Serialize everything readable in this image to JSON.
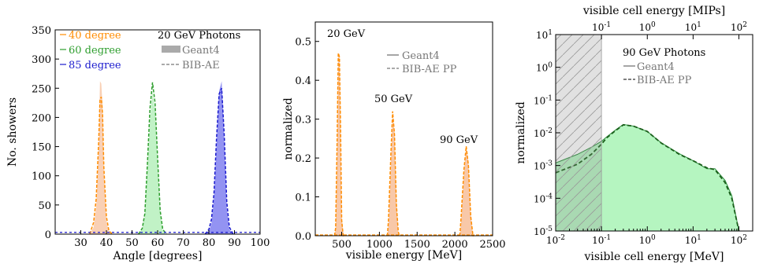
{
  "chart_data": [
    {
      "type": "histogram",
      "xlabel": "Angle [degrees]",
      "ylabel": "No. showers",
      "xlim": [
        20,
        100
      ],
      "ylim": [
        0,
        350
      ],
      "xticks": [
        "30",
        "40",
        "50",
        "60",
        "70",
        "80",
        "90",
        "100"
      ],
      "yticks": [
        "0",
        "50",
        "100",
        "150",
        "200",
        "250",
        "300",
        "350"
      ],
      "legend_position": "top-left",
      "legend_title": "20 GeV Photons",
      "legend_entries": [
        "Geant4",
        "BIB-AE"
      ],
      "series": [
        {
          "name": "40 degree",
          "color": "#ff8c00",
          "fill": "#f8c8a8",
          "x": [
            35,
            36,
            37,
            37.5,
            38,
            38.5,
            39,
            40,
            41
          ],
          "geant4": [
            12,
            45,
            155,
            262,
            258,
            220,
            110,
            22,
            3
          ],
          "bibae": [
            20,
            60,
            160,
            230,
            235,
            205,
            115,
            30,
            5
          ]
        },
        {
          "name": "60 degree",
          "color": "#2e9e2e",
          "fill": "#b6f0bc",
          "x": [
            54,
            55,
            56,
            57,
            58,
            59,
            60,
            61,
            62
          ],
          "geant4": [
            8,
            30,
            110,
            195,
            245,
            210,
            120,
            35,
            5
          ],
          "bibae": [
            10,
            35,
            120,
            215,
            260,
            225,
            130,
            40,
            8
          ]
        },
        {
          "name": "85 degree",
          "color": "#1a1acd",
          "fill": "#8080f0",
          "x": [
            80,
            81,
            82,
            83,
            84,
            85,
            86,
            87,
            88
          ],
          "geant4": [
            5,
            18,
            60,
            150,
            245,
            262,
            160,
            45,
            8
          ],
          "bibae": [
            8,
            25,
            70,
            165,
            240,
            250,
            170,
            55,
            12
          ]
        }
      ]
    },
    {
      "type": "histogram",
      "xlabel": "visible energy [MeV]",
      "ylabel": "normalized",
      "xlim": [
        150,
        2500
      ],
      "ylim": [
        0,
        0.55
      ],
      "xticks": [
        "500",
        "1000",
        "1500",
        "2000",
        "2500"
      ],
      "yticks": [
        "0.0",
        "0.1",
        "0.2",
        "0.3",
        "0.4",
        "0.5"
      ],
      "legend_position": "top-right",
      "legend_entries": [
        "Geant4",
        "BIB-AE PP"
      ],
      "annotations": [
        "20 GeV",
        "50 GeV",
        "90 GeV"
      ],
      "series": [
        {
          "name": "20 GeV",
          "x": [
            420,
            440,
            455,
            470,
            485,
            500,
            520
          ],
          "geant4": [
            0.02,
            0.24,
            0.46,
            0.47,
            0.3,
            0.05,
            0.01
          ],
          "bibae": [
            0.02,
            0.25,
            0.47,
            0.46,
            0.28,
            0.04,
            0.0
          ]
        },
        {
          "name": "50 GeV",
          "x": [
            1120,
            1150,
            1175,
            1200,
            1225,
            1250
          ],
          "geant4": [
            0.03,
            0.18,
            0.31,
            0.27,
            0.1,
            0.01
          ],
          "bibae": [
            0.04,
            0.2,
            0.32,
            0.26,
            0.08,
            0.01
          ]
        },
        {
          "name": "90 GeV",
          "x": [
            2080,
            2120,
            2150,
            2180,
            2210,
            2240
          ],
          "geant4": [
            0.03,
            0.16,
            0.23,
            0.19,
            0.06,
            0.0
          ],
          "bibae": [
            0.04,
            0.17,
            0.23,
            0.18,
            0.05,
            0.0
          ]
        }
      ]
    },
    {
      "type": "area",
      "xscale": "log",
      "yscale": "log",
      "xlabel": "visible cell energy [MeV]",
      "ylabel": "normalized",
      "top_xlabel": "visible cell energy [MIPs]",
      "xlim": [
        0.01,
        200
      ],
      "ylim": [
        1e-05,
        10
      ],
      "xticks": [
        "10-2",
        "10-1",
        "100",
        "101",
        "102"
      ],
      "top_xticks": [
        "10-1",
        "100",
        "101",
        "102",
        "103"
      ],
      "yticks": [
        "10-5",
        "10-4",
        "10-3",
        "10-2",
        "10-1",
        "100",
        "101"
      ],
      "shaded_region": [
        0.01,
        0.1
      ],
      "legend_position": "top-right",
      "legend_title": "90 GeV Photons",
      "legend_entries": [
        "Geant4",
        "BIB-AE PP"
      ],
      "series": [
        {
          "name": "Geant4",
          "x": [
            0.01,
            0.03,
            0.06,
            0.1,
            0.13,
            0.2,
            0.3,
            0.5,
            1,
            2,
            5,
            10,
            20,
            30,
            50,
            70,
            100
          ],
          "y": [
            0.0012,
            0.0022,
            0.0036,
            0.0055,
            0.0075,
            0.012,
            0.018,
            0.016,
            0.011,
            0.005,
            0.0023,
            0.0014,
            0.0008,
            0.0008,
            0.00035,
            0.00012,
            1e-05
          ]
        },
        {
          "name": "BIB-AE PP",
          "x": [
            0.01,
            0.03,
            0.06,
            0.1,
            0.13,
            0.2,
            0.3,
            0.5,
            1,
            2,
            5,
            10,
            20,
            30,
            50,
            70,
            100
          ],
          "y": [
            0.0006,
            0.0011,
            0.0022,
            0.0045,
            0.007,
            0.0115,
            0.0175,
            0.016,
            0.011,
            0.0049,
            0.0022,
            0.0014,
            0.00085,
            0.00075,
            0.0003,
            0.0001,
            1e-05
          ]
        }
      ]
    }
  ]
}
